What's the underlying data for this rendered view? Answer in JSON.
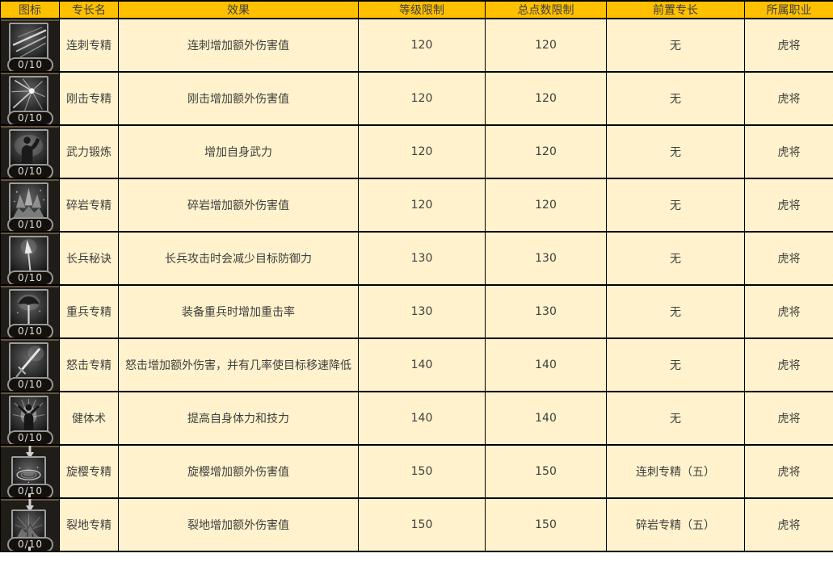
{
  "colors": {
    "header_bg": "#FFC000",
    "cell_bg": "#FFF2CC",
    "border": "#000000",
    "icon_cell_bg": "#201D18",
    "text": "#3F3F3F"
  },
  "table": {
    "headers": [
      {
        "key": "icon",
        "label": "图标"
      },
      {
        "key": "name",
        "label": "专长名"
      },
      {
        "key": "effect",
        "label": "效果"
      },
      {
        "key": "level_limit",
        "label": "等级限制"
      },
      {
        "key": "total_points_limit",
        "label": "总点数限制"
      },
      {
        "key": "prerequisite",
        "label": "前置专长"
      },
      {
        "key": "class",
        "label": "所属职业"
      }
    ],
    "rows": [
      {
        "icon": "slash-streaks-icon",
        "icon_badge": "0/10",
        "connector_arrow": false,
        "name": "连刺专精",
        "effect": "连刺增加额外伤害值",
        "level_limit": "120",
        "total_points_limit": "120",
        "prerequisite": "无",
        "class": "虎将"
      },
      {
        "icon": "impact-burst-icon",
        "icon_badge": "0/10",
        "connector_arrow": false,
        "name": "刚击专精",
        "effect": "刚击增加额外伤害值",
        "level_limit": "120",
        "total_points_limit": "120",
        "prerequisite": "无",
        "class": "虎将"
      },
      {
        "icon": "muscle-training-icon",
        "icon_badge": "0/10",
        "connector_arrow": false,
        "name": "武力锻炼",
        "effect": "增加自身武力",
        "level_limit": "120",
        "total_points_limit": "120",
        "prerequisite": "无",
        "class": "虎将"
      },
      {
        "icon": "rock-shatter-icon",
        "icon_badge": "0/10",
        "connector_arrow": false,
        "name": "碎岩专精",
        "effect": "碎岩增加额外伤害值",
        "level_limit": "120",
        "total_points_limit": "120",
        "prerequisite": "无",
        "class": "虎将"
      },
      {
        "icon": "spear-icon",
        "icon_badge": "0/10",
        "connector_arrow": false,
        "name": "长兵秘诀",
        "effect": "长兵攻击时会减少目标防御力",
        "level_limit": "130",
        "total_points_limit": "130",
        "prerequisite": "无",
        "class": "虎将"
      },
      {
        "icon": "heavy-axe-icon",
        "icon_badge": "0/10",
        "connector_arrow": false,
        "name": "重兵专精",
        "effect": "装备重兵时增加重击率",
        "level_limit": "130",
        "total_points_limit": "130",
        "prerequisite": "无",
        "class": "虎将"
      },
      {
        "icon": "fury-sword-icon",
        "icon_badge": "0/10",
        "connector_arrow": false,
        "name": "怒击专精",
        "effect": "怒击增加额外伤害，并有几率使目标移速降低",
        "level_limit": "140",
        "total_points_limit": "140",
        "prerequisite": "无",
        "class": "虎将"
      },
      {
        "icon": "radiant-body-icon",
        "icon_badge": "0/10",
        "connector_arrow": false,
        "name": "健体术",
        "effect": "提高自身体力和技力",
        "level_limit": "140",
        "total_points_limit": "140",
        "prerequisite": "无",
        "class": "虎将"
      },
      {
        "icon": "spin-slash-icon",
        "icon_badge": "0/10",
        "connector_arrow": true,
        "name": "旋樱专精",
        "effect": "旋樱增加额外伤害值",
        "level_limit": "150",
        "total_points_limit": "150",
        "prerequisite": "连刺专精（五）",
        "class": "虎将"
      },
      {
        "icon": "earth-split-icon",
        "icon_badge": "0/10",
        "connector_arrow": true,
        "name": "裂地专精",
        "effect": "裂地增加额外伤害值",
        "level_limit": "150",
        "total_points_limit": "150",
        "prerequisite": "碎岩专精（五）",
        "class": "虎将"
      }
    ]
  }
}
